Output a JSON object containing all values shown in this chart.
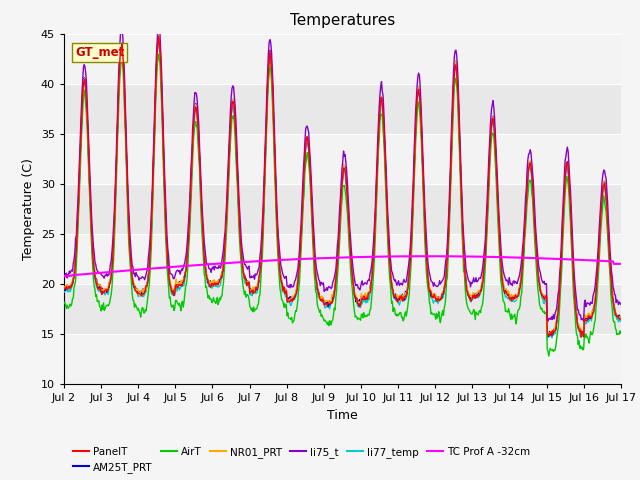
{
  "title": "Temperatures",
  "xlabel": "Time",
  "ylabel": "Temperature (C)",
  "xlim": [
    0,
    15
  ],
  "ylim": [
    10,
    45
  ],
  "yticks": [
    10,
    15,
    20,
    25,
    30,
    35,
    40,
    45
  ],
  "xtick_labels": [
    "Jul 2",
    "Jul 3",
    "Jul 4",
    "Jul 5",
    "Jul 6",
    "Jul 7",
    "Jul 8",
    "Jul 9",
    "Jul 10",
    "Jul 11",
    "Jul 12",
    "Jul 13",
    "Jul 14",
    "Jul 15",
    "Jul 16",
    "Jul 17"
  ],
  "series_colors": {
    "PanelT": "#ff0000",
    "AM25T_PRT": "#0000cc",
    "AirT": "#00cc00",
    "NR01_PRT": "#ffaa00",
    "li75_t": "#8800cc",
    "li77_temp": "#00cccc",
    "TC_Prof": "#ff00ff"
  },
  "annotation_text": "GT_met",
  "background_color": "#e8e8e8",
  "grid_color": "#ffffff",
  "title_fontsize": 11,
  "axis_label_fontsize": 9,
  "tick_fontsize": 8
}
